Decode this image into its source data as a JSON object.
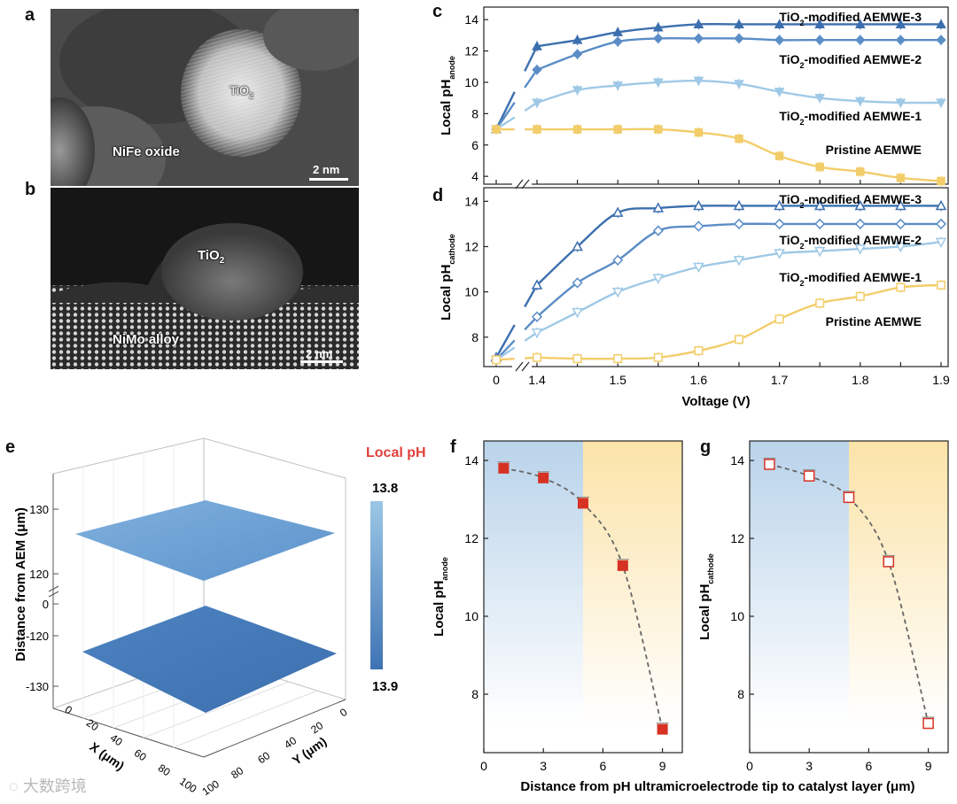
{
  "panels": {
    "a": "a",
    "b": "b",
    "c": "c",
    "d": "d",
    "e": "e",
    "f": "f",
    "g": "g"
  },
  "micrographs": {
    "a": {
      "label_particle_base": "TiO",
      "label_particle_sub": "2",
      "label_matrix": "NiFe oxide",
      "scale": "2 nm"
    },
    "b": {
      "label_particle_base": "TiO",
      "label_particle_sub": "2",
      "label_matrix": "NiMo alloy",
      "scale": "2 nm"
    }
  },
  "colors": {
    "aemwe3": "#3c6fae",
    "aemwe2": "#5b8dc6",
    "aemwe1": "#9fc9e6",
    "pristine": "#f2cd6a",
    "red_marker": "#d63224",
    "local_ph_title": "#e0413a"
  },
  "watermark": "大数跨境",
  "chart_data": [
    {
      "panel": "c",
      "type": "line",
      "xlabel": "",
      "ylabel_base": "Local pH",
      "ylabel_sub": "anode",
      "ylim": [
        3.5,
        14.8
      ],
      "yticks": [
        4,
        6,
        8,
        10,
        12,
        14
      ],
      "x": [
        0,
        1.4,
        1.45,
        1.5,
        1.55,
        1.6,
        1.65,
        1.7,
        1.75,
        1.8,
        1.85,
        1.9
      ],
      "series": [
        {
          "name": "TiO₂-modified AEMWE-3",
          "key": "aemwe3",
          "marker": "triangle-up-filled",
          "values": [
            7.0,
            12.3,
            12.7,
            13.2,
            13.5,
            13.7,
            13.7,
            13.7,
            13.7,
            13.7,
            13.7,
            13.7
          ]
        },
        {
          "name": "TiO₂-modified AEMWE-2",
          "key": "aemwe2",
          "marker": "diamond-filled",
          "values": [
            7.0,
            10.8,
            11.8,
            12.6,
            12.8,
            12.8,
            12.8,
            12.7,
            12.7,
            12.7,
            12.7,
            12.7
          ]
        },
        {
          "name": "TiO₂-modified AEMWE-1",
          "key": "aemwe1",
          "marker": "triangle-down-filled",
          "values": [
            7.0,
            8.7,
            9.5,
            9.8,
            10.0,
            10.1,
            9.9,
            9.4,
            9.0,
            8.8,
            8.7,
            8.7
          ]
        },
        {
          "name": "Pristine AEMWE",
          "key": "pristine",
          "marker": "square-filled",
          "values": [
            7.0,
            7.0,
            7.0,
            7.0,
            7.0,
            6.8,
            6.4,
            5.3,
            4.6,
            4.3,
            3.9,
            3.7
          ]
        }
      ],
      "series_labels": [
        {
          "base": "TiO",
          "sub": "2",
          "rest": "-modified AEMWE-3"
        },
        {
          "base": "TiO",
          "sub": "2",
          "rest": "-modified AEMWE-2"
        },
        {
          "base": "TiO",
          "sub": "2",
          "rest": "-modified AEMWE-1"
        },
        {
          "base": "",
          "sub": "",
          "rest": "Pristine AEMWE"
        }
      ]
    },
    {
      "panel": "d",
      "type": "line",
      "xlabel": "Voltage (V)",
      "ylabel_base": "Local pH",
      "ylabel_sub": "cathode",
      "ylim": [
        6.7,
        14.6
      ],
      "yticks": [
        8,
        10,
        12,
        14
      ],
      "x": [
        0,
        1.4,
        1.45,
        1.5,
        1.55,
        1.6,
        1.65,
        1.7,
        1.75,
        1.8,
        1.85,
        1.9
      ],
      "xtick_labels": [
        "0",
        "1.4",
        "1.5",
        "1.6",
        "1.7",
        "1.8",
        "1.9"
      ],
      "series": [
        {
          "name": "TiO₂-modified AEMWE-3",
          "key": "aemwe3",
          "marker": "triangle-up-open",
          "values": [
            7.1,
            10.3,
            12.0,
            13.5,
            13.7,
            13.8,
            13.8,
            13.8,
            13.8,
            13.8,
            13.8,
            13.8
          ]
        },
        {
          "name": "TiO₂-modified AEMWE-2",
          "key": "aemwe2",
          "marker": "diamond-open",
          "values": [
            7.0,
            8.9,
            10.4,
            11.4,
            12.7,
            12.9,
            13.0,
            13.0,
            13.0,
            13.0,
            13.0,
            13.0
          ]
        },
        {
          "name": "TiO₂-modified AEMWE-1",
          "key": "aemwe1",
          "marker": "triangle-down-open",
          "values": [
            7.0,
            8.2,
            9.1,
            10.0,
            10.6,
            11.1,
            11.4,
            11.7,
            11.8,
            11.9,
            12.0,
            12.2
          ]
        },
        {
          "name": "Pristine AEMWE",
          "key": "pristine",
          "marker": "square-open",
          "values": [
            7.0,
            7.1,
            7.05,
            7.05,
            7.1,
            7.4,
            7.9,
            8.8,
            9.5,
            9.8,
            10.2,
            10.3
          ]
        }
      ],
      "series_labels": [
        {
          "base": "TiO",
          "sub": "2",
          "rest": "-modified AEMWE-3"
        },
        {
          "base": "TiO",
          "sub": "2",
          "rest": "-modified AEMWE-2"
        },
        {
          "base": "TiO",
          "sub": "2",
          "rest": "-modified AEMWE-1"
        },
        {
          "base": "",
          "sub": "",
          "rest": "Pristine AEMWE"
        }
      ]
    },
    {
      "panel": "e",
      "type": "surface",
      "zlabel": "Distance from AEM (μm)",
      "zticks_top": [
        "130",
        "120"
      ],
      "zticks_bottom": [
        "0",
        "-120",
        "-130"
      ],
      "xlabel": "X (μm)",
      "ylabel": "Y (μm)",
      "xticks": [
        "0",
        "20",
        "40",
        "60",
        "80",
        "100"
      ],
      "yticks": [
        "0",
        "20",
        "40",
        "60",
        "80",
        "100"
      ],
      "colorbar_title": "Local pH",
      "colorbar_range": [
        "13.8",
        "13.9"
      ]
    },
    {
      "panel": "f",
      "type": "scatter",
      "xlabel": "Distance from pH ultramicroelectrode tip to catalyst layer (μm)",
      "ylabel_base": "Local pH",
      "ylabel_sub": "anode",
      "xlim": [
        0,
        10
      ],
      "ylim": [
        6.5,
        14.5
      ],
      "xticks": [
        0,
        3,
        6,
        9
      ],
      "yticks": [
        8,
        10,
        12,
        14
      ],
      "x": [
        1,
        3,
        5,
        7,
        9
      ],
      "values": [
        13.8,
        13.55,
        12.9,
        11.3,
        7.1
      ],
      "marker": "square-filled"
    },
    {
      "panel": "g",
      "type": "scatter",
      "xlabel": "",
      "ylabel_base": "Local pH",
      "ylabel_sub": "cathode",
      "xlim": [
        0,
        10
      ],
      "ylim": [
        6.5,
        14.5
      ],
      "xticks": [
        0,
        3,
        6,
        9
      ],
      "yticks": [
        8,
        10,
        12,
        14
      ],
      "x": [
        1,
        3,
        5,
        7,
        9
      ],
      "values": [
        13.9,
        13.6,
        13.05,
        11.4,
        7.25
      ],
      "marker": "square-open"
    }
  ]
}
